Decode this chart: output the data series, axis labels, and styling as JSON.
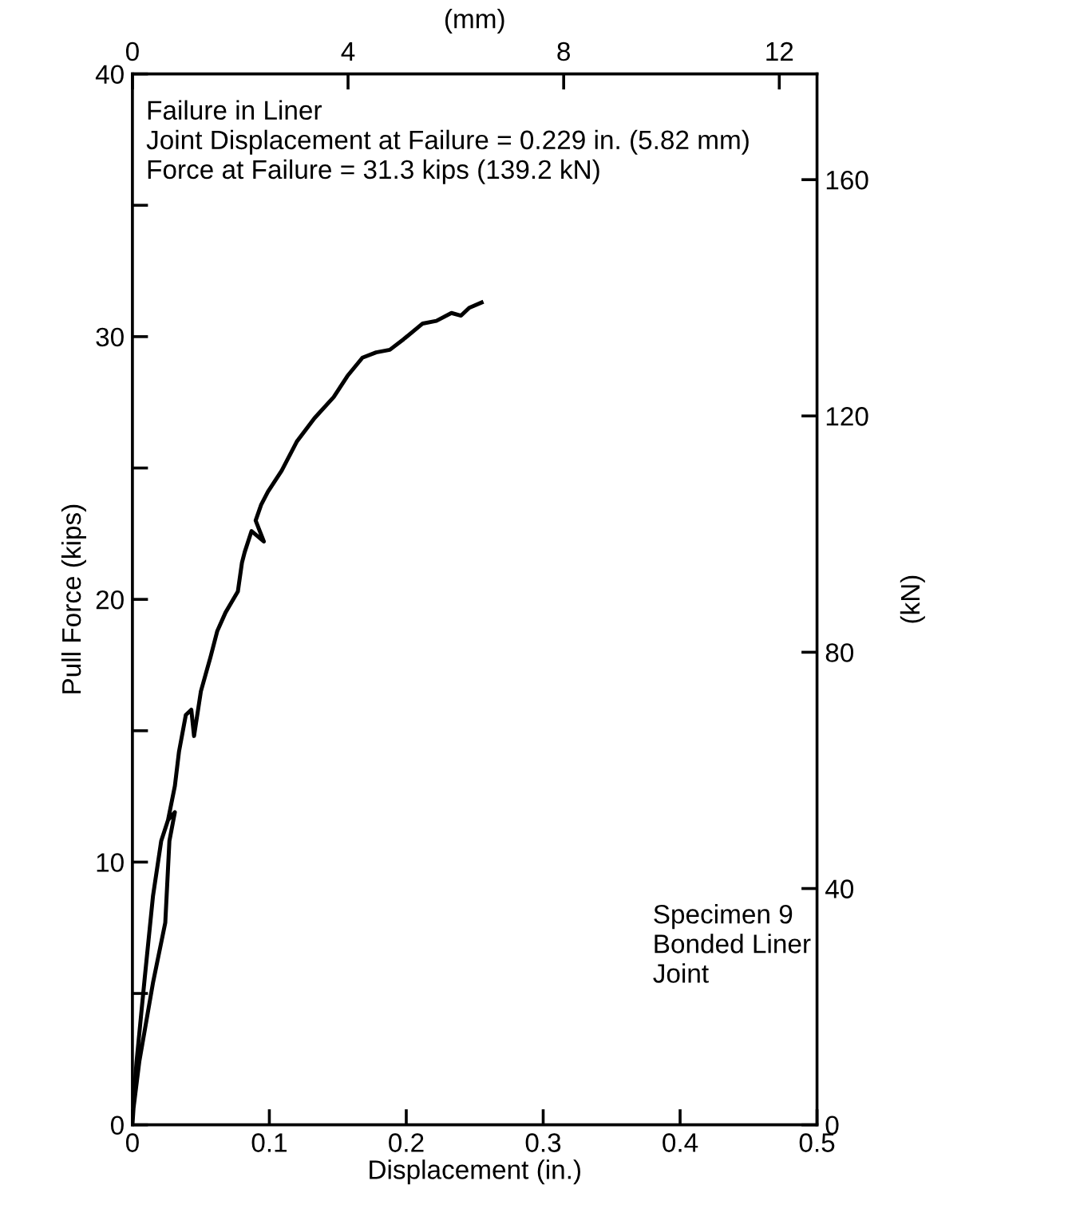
{
  "chart_data": {
    "type": "line",
    "xlabel": "Displacement (in.)",
    "ylabel": "Pull Force (kips)",
    "x2label": "(mm)",
    "y2label": "(kN)",
    "xlim": [
      0,
      0.5
    ],
    "xticks": [
      0,
      0.1,
      0.2,
      0.3,
      0.4,
      0.5
    ],
    "ylim": [
      0,
      40
    ],
    "yticks": [
      0,
      {
        "value": 5,
        "label": null
      },
      10,
      {
        "value": 15,
        "label": null
      },
      20,
      {
        "value": 25,
        "label": null
      },
      30,
      {
        "value": 35,
        "label": null
      },
      40
    ],
    "x2lim": [
      0,
      12.7
    ],
    "x2ticks": [
      0,
      4,
      8,
      12
    ],
    "y2lim": [
      0,
      177.9
    ],
    "y2ticks": [
      0,
      40,
      80,
      120,
      160
    ],
    "grid": false,
    "marker": "none",
    "line_style": "solid",
    "series": [
      {
        "color": "#000000",
        "x": [
          0,
          0.003,
          0.009,
          0.015,
          0.021,
          0.026,
          0.031,
          0.027,
          0.024,
          0.015,
          0.005,
          0,
          0.003,
          0.009,
          0.015,
          0.021,
          0.026,
          0.031,
          0.034,
          0.039,
          0.043,
          0.045,
          0.05,
          0.057,
          0.062,
          0.068,
          0.077,
          0.08,
          0.082,
          0.087,
          0.096,
          0.09,
          0.094,
          0.099,
          0.109,
          0.12,
          0.133,
          0.147,
          0.157,
          0.168,
          0.178,
          0.188,
          0.198,
          0.212,
          0.222,
          0.233,
          0.24,
          0.246,
          0.255
        ],
        "values": [
          0,
          2.4,
          5.6,
          8.7,
          10.8,
          11.6,
          11.9,
          10.8,
          7.7,
          5.4,
          2.4,
          0.3,
          2.4,
          5.6,
          8.7,
          10.8,
          11.6,
          12.9,
          14.2,
          15.6,
          15.8,
          14.8,
          16.5,
          17.8,
          18.8,
          19.5,
          20.3,
          21.4,
          21.8,
          22.6,
          22.2,
          23.0,
          23.6,
          24.1,
          24.9,
          26.0,
          26.9,
          27.7,
          28.5,
          29.2,
          29.4,
          29.5,
          29.9,
          30.5,
          30.6,
          30.9,
          30.8,
          31.1,
          31.3
        ]
      }
    ],
    "annotations": [
      "Failure in Liner\nJoint Displacement at Failure = 0.229 in. (5.82 mm)\nForce at Failure = 31.3 kips (139.2 kN)",
      "Specimen 9\nBonded Liner\nJoint"
    ]
  }
}
